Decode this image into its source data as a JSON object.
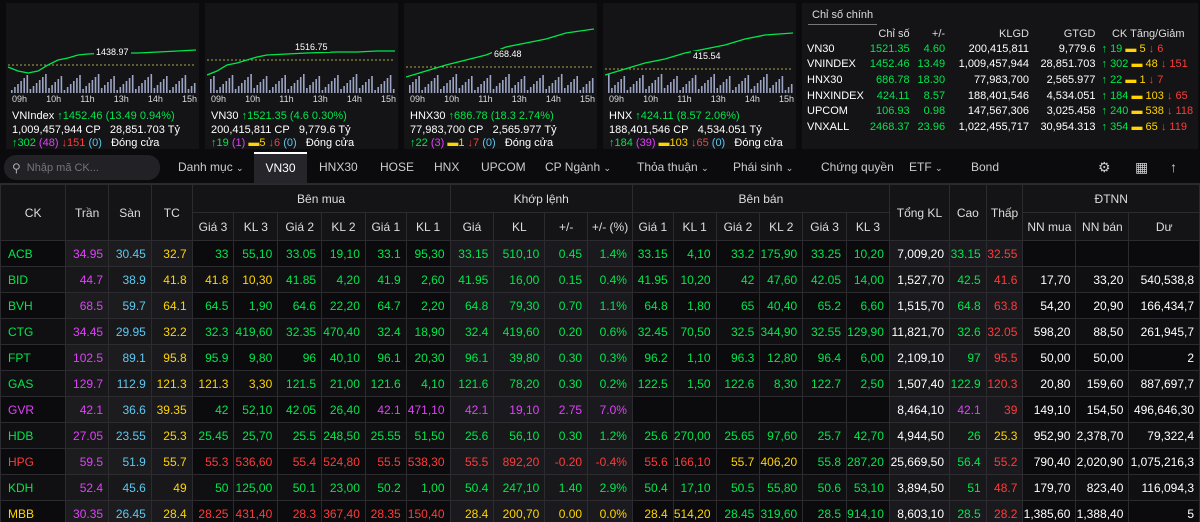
{
  "minicharts": [
    {
      "ref_label": "1438.97",
      "times": [
        "09h",
        "10h",
        "11h",
        "13h",
        "14h",
        "15h"
      ],
      "name": "VNIndex",
      "value": "1452.46",
      "change": "(13.49 0.94%)",
      "volume": "1,009,457,944 CP",
      "valuetext": "28,851.703 Tỷ",
      "up": "302",
      "ceil": "(48)",
      "down": "151",
      "ceil2": "(0)",
      "status": "Đóng cửa"
    },
    {
      "ref_label": "1516.75",
      "times": [
        "09h",
        "10h",
        "11h",
        "13h",
        "14h",
        "15h"
      ],
      "name": "VN30",
      "value": "1521.35",
      "change": "(4.6 0.30%)",
      "volume": "200,415,811 CP",
      "valuetext": "9,779.6 Tỷ",
      "up": "19",
      "ceil": "(1)",
      "same": "5",
      "down": "6",
      "ceil2": "(0)",
      "status": "Đóng cửa"
    },
    {
      "ref_label": "668.48",
      "times": [
        "09h",
        "10h",
        "11h",
        "13h",
        "14h",
        "15h"
      ],
      "name": "HNX30",
      "value": "686.78",
      "change": "(18.3 2.74%)",
      "volume": "77,983,700 CP",
      "valuetext": "2,565.977 Tỷ",
      "up": "22",
      "ceil": "(3)",
      "same": "1",
      "down": "7",
      "ceil2": "(0)",
      "status": "Đóng cửa"
    },
    {
      "ref_label": "415.54",
      "times": [
        "09h",
        "10h",
        "11h",
        "13h",
        "14h",
        "15h"
      ],
      "name": "HNX",
      "value": "424.11",
      "change": "(8.57 2.06%)",
      "volume": "188,401,546 CP",
      "valuetext": "4,534.051 Tỷ",
      "up": "184",
      "ceil": "(39)",
      "same": "103",
      "down": "65",
      "ceil2": "(0)",
      "status": "Đóng cửa"
    }
  ],
  "summary": {
    "tab": "Chỉ số chính",
    "headers": [
      "Chỉ số",
      "+/-",
      "KLGD",
      "GTGD",
      "CK Tăng/Giảm"
    ],
    "rows": [
      {
        "name": "VN30",
        "value": "1521.35",
        "chg": "4.60",
        "klgd": "200,415,811",
        "gtgd": "9,779.6",
        "up": "19",
        "same": "5",
        "down": "6"
      },
      {
        "name": "VNINDEX",
        "value": "1452.46",
        "chg": "13.49",
        "klgd": "1,009,457,944",
        "gtgd": "28,851.703",
        "up": "302",
        "same": "48",
        "down": "151"
      },
      {
        "name": "HNX30",
        "value": "686.78",
        "chg": "18.30",
        "klgd": "77,983,700",
        "gtgd": "2,565.977",
        "up": "22",
        "same": "1",
        "down": "7"
      },
      {
        "name": "HNXINDEX",
        "value": "424.11",
        "chg": "8.57",
        "klgd": "188,401,546",
        "gtgd": "4,534.051",
        "up": "184",
        "same": "103",
        "down": "65"
      },
      {
        "name": "UPCOM",
        "value": "106.93",
        "chg": "0.98",
        "klgd": "147,567,306",
        "gtgd": "3,025.458",
        "up": "240",
        "same": "538",
        "down": "118"
      },
      {
        "name": "VNXALL",
        "value": "2468.37",
        "chg": "23.96",
        "klgd": "1,022,455,717",
        "gtgd": "30,954.313",
        "up": "354",
        "same": "65",
        "down": "119"
      }
    ]
  },
  "toolbar": {
    "search_placeholder": "Nhập mã CK...",
    "tabs": [
      "Danh mục",
      "VN30",
      "HNX30",
      "HOSE",
      "HNX",
      "UPCOM",
      "CP Ngành",
      "Thỏa thuận",
      "Phái sinh",
      "Chứng quyền",
      "ETF",
      "Bond"
    ]
  },
  "table": {
    "groups": {
      "ben_mua": "Bên mua",
      "khop_lenh": "Khớp lệnh",
      "ben_ban": "Bên bán",
      "dtnn": "ĐTNN"
    },
    "headers": {
      "ck": "CK",
      "tran": "Trần",
      "san": "Sàn",
      "tc": "TC",
      "g3": "Giá 3",
      "kl3": "KL 3",
      "g2": "Giá 2",
      "kl2": "KL 2",
      "g1": "Giá 1",
      "kl1": "KL 1",
      "gia": "Giá",
      "kl": "KL",
      "chg": "+/-",
      "pct": "+/- (%)",
      "sg1": "Giá 1",
      "skl1": "KL 1",
      "sg2": "Giá 2",
      "skl2": "KL 2",
      "sg3": "Giá 3",
      "skl3": "KL 3",
      "tongkl": "Tổng KL",
      "cao": "Cao",
      "thap": "Thấp",
      "nnmua": "NN mua",
      "nnban": "NN bán",
      "du": "Dư"
    },
    "rows": [
      {
        "ck": "ACB",
        "c": "g",
        "tran": "34.95",
        "san": "30.45",
        "tc": "32.7",
        "b": [
          [
            "33",
            "g"
          ],
          [
            "55,10",
            "g"
          ],
          [
            "33.05",
            "g"
          ],
          [
            "19,10",
            "g"
          ],
          [
            "33.1",
            "g"
          ],
          [
            "95,30",
            "g"
          ]
        ],
        "m": [
          [
            "33.15",
            "g"
          ],
          [
            "510,10",
            "g"
          ],
          [
            "0.45",
            "g"
          ],
          [
            "1.4%",
            "g"
          ]
        ],
        "s": [
          [
            "33.15",
            "g"
          ],
          [
            "4,10",
            "g"
          ],
          [
            "33.2",
            "g"
          ],
          [
            "175,90",
            "g"
          ],
          [
            "33.25",
            "g"
          ],
          [
            "10,20",
            "g"
          ]
        ],
        "tongkl": "7,009,20",
        "cao": [
          "33.15",
          "g"
        ],
        "thap": [
          "32.55",
          "r"
        ],
        "nnmua": "",
        "nnban": "",
        "du": ""
      },
      {
        "ck": "BID",
        "c": "g",
        "tran": "44.7",
        "san": "38.9",
        "tc": "41.8",
        "b": [
          [
            "41.8",
            "y"
          ],
          [
            "10,30",
            "y"
          ],
          [
            "41.85",
            "g"
          ],
          [
            "4,20",
            "g"
          ],
          [
            "41.9",
            "g"
          ],
          [
            "2,60",
            "g"
          ]
        ],
        "m": [
          [
            "41.95",
            "g"
          ],
          [
            "16,00",
            "g"
          ],
          [
            "0.15",
            "g"
          ],
          [
            "0.4%",
            "g"
          ]
        ],
        "s": [
          [
            "41.95",
            "g"
          ],
          [
            "10,20",
            "g"
          ],
          [
            "42",
            "g"
          ],
          [
            "47,60",
            "g"
          ],
          [
            "42.05",
            "g"
          ],
          [
            "14,00",
            "g"
          ]
        ],
        "tongkl": "1,527,70",
        "cao": [
          "42.5",
          "g"
        ],
        "thap": [
          "41.6",
          "r"
        ],
        "nnmua": "17,70",
        "nnban": "33,20",
        "du": "540,538,8"
      },
      {
        "ck": "BVH",
        "c": "g",
        "tran": "68.5",
        "san": "59.7",
        "tc": "64.1",
        "b": [
          [
            "64.5",
            "g"
          ],
          [
            "1,90",
            "g"
          ],
          [
            "64.6",
            "g"
          ],
          [
            "22,20",
            "g"
          ],
          [
            "64.7",
            "g"
          ],
          [
            "2,20",
            "g"
          ]
        ],
        "m": [
          [
            "64.8",
            "g"
          ],
          [
            "79,30",
            "g"
          ],
          [
            "0.70",
            "g"
          ],
          [
            "1.1%",
            "g"
          ]
        ],
        "s": [
          [
            "64.8",
            "g"
          ],
          [
            "1,80",
            "g"
          ],
          [
            "65",
            "g"
          ],
          [
            "40,40",
            "g"
          ],
          [
            "65.2",
            "g"
          ],
          [
            "6,60",
            "g"
          ]
        ],
        "tongkl": "1,515,70",
        "cao": [
          "64.8",
          "g"
        ],
        "thap": [
          "63.8",
          "r"
        ],
        "nnmua": "54,20",
        "nnban": "20,90",
        "du": "166,434,7"
      },
      {
        "ck": "CTG",
        "c": "g",
        "tran": "34.45",
        "san": "29.95",
        "tc": "32.2",
        "b": [
          [
            "32.3",
            "g"
          ],
          [
            "419,60",
            "g"
          ],
          [
            "32.35",
            "g"
          ],
          [
            "470,40",
            "g"
          ],
          [
            "32.4",
            "g"
          ],
          [
            "18,90",
            "g"
          ]
        ],
        "m": [
          [
            "32.4",
            "g"
          ],
          [
            "419,60",
            "g"
          ],
          [
            "0.20",
            "g"
          ],
          [
            "0.6%",
            "g"
          ]
        ],
        "s": [
          [
            "32.45",
            "g"
          ],
          [
            "70,50",
            "g"
          ],
          [
            "32.5",
            "g"
          ],
          [
            "344,90",
            "g"
          ],
          [
            "32.55",
            "g"
          ],
          [
            "129,90",
            "g"
          ]
        ],
        "tongkl": "11,821,70",
        "cao": [
          "32.6",
          "g"
        ],
        "thap": [
          "32.05",
          "r"
        ],
        "nnmua": "598,20",
        "nnban": "88,50",
        "du": "261,945,7"
      },
      {
        "ck": "FPT",
        "c": "g",
        "tran": "102.5",
        "san": "89.1",
        "tc": "95.8",
        "b": [
          [
            "95.9",
            "g"
          ],
          [
            "9,80",
            "g"
          ],
          [
            "96",
            "g"
          ],
          [
            "40,10",
            "g"
          ],
          [
            "96.1",
            "g"
          ],
          [
            "20,30",
            "g"
          ]
        ],
        "m": [
          [
            "96.1",
            "g"
          ],
          [
            "39,80",
            "g"
          ],
          [
            "0.30",
            "g"
          ],
          [
            "0.3%",
            "g"
          ]
        ],
        "s": [
          [
            "96.2",
            "g"
          ],
          [
            "1,10",
            "g"
          ],
          [
            "96.3",
            "g"
          ],
          [
            "12,80",
            "g"
          ],
          [
            "96.4",
            "g"
          ],
          [
            "6,00",
            "g"
          ]
        ],
        "tongkl": "2,109,10",
        "cao": [
          "97",
          "g"
        ],
        "thap": [
          "95.5",
          "r"
        ],
        "nnmua": "50,00",
        "nnban": "50,00",
        "du": "2"
      },
      {
        "ck": "GAS",
        "c": "g",
        "tran": "129.7",
        "san": "112.9",
        "tc": "121.3",
        "b": [
          [
            "121.3",
            "y"
          ],
          [
            "3,30",
            "y"
          ],
          [
            "121.5",
            "g"
          ],
          [
            "21,00",
            "g"
          ],
          [
            "121.6",
            "g"
          ],
          [
            "4,10",
            "g"
          ]
        ],
        "m": [
          [
            "121.6",
            "g"
          ],
          [
            "78,20",
            "g"
          ],
          [
            "0.30",
            "g"
          ],
          [
            "0.2%",
            "g"
          ]
        ],
        "s": [
          [
            "122.5",
            "g"
          ],
          [
            "1,50",
            "g"
          ],
          [
            "122.6",
            "g"
          ],
          [
            "8,30",
            "g"
          ],
          [
            "122.7",
            "g"
          ],
          [
            "2,50",
            "g"
          ]
        ],
        "tongkl": "1,507,40",
        "cao": [
          "122.9",
          "g"
        ],
        "thap": [
          "120.3",
          "r"
        ],
        "nnmua": "20,80",
        "nnban": "159,60",
        "du": "887,697,7"
      },
      {
        "ck": "GVR",
        "c": "p",
        "tran": "42.1",
        "san": "36.6",
        "tc": "39.35",
        "b": [
          [
            "42",
            "g"
          ],
          [
            "52,10",
            "g"
          ],
          [
            "42.05",
            "g"
          ],
          [
            "26,40",
            "g"
          ],
          [
            "42.1",
            "p"
          ],
          [
            "471,10",
            "p"
          ]
        ],
        "m": [
          [
            "42.1",
            "p"
          ],
          [
            "19,10",
            "p"
          ],
          [
            "2.75",
            "p"
          ],
          [
            "7.0%",
            "p"
          ]
        ],
        "s": [
          [
            "",
            "g"
          ],
          [
            "",
            "g"
          ],
          [
            "",
            "g"
          ],
          [
            "",
            "g"
          ],
          [
            "",
            "g"
          ],
          [
            "",
            "g"
          ]
        ],
        "tongkl": "8,464,10",
        "cao": [
          "42.1",
          "p"
        ],
        "thap": [
          "39",
          "r"
        ],
        "nnmua": "149,10",
        "nnban": "154,50",
        "du": "496,646,30"
      },
      {
        "ck": "HDB",
        "c": "g",
        "tran": "27.05",
        "san": "23.55",
        "tc": "25.3",
        "b": [
          [
            "25.45",
            "g"
          ],
          [
            "25,70",
            "g"
          ],
          [
            "25.5",
            "g"
          ],
          [
            "248,50",
            "g"
          ],
          [
            "25.55",
            "g"
          ],
          [
            "51,50",
            "g"
          ]
        ],
        "m": [
          [
            "25.6",
            "g"
          ],
          [
            "56,10",
            "g"
          ],
          [
            "0.30",
            "g"
          ],
          [
            "1.2%",
            "g"
          ]
        ],
        "s": [
          [
            "25.6",
            "g"
          ],
          [
            "270,00",
            "g"
          ],
          [
            "25.65",
            "g"
          ],
          [
            "97,60",
            "g"
          ],
          [
            "25.7",
            "g"
          ],
          [
            "42,70",
            "g"
          ]
        ],
        "tongkl": "4,944,50",
        "cao": [
          "26",
          "g"
        ],
        "thap": [
          "25.3",
          "y"
        ],
        "nnmua": "952,90",
        "nnban": "2,378,70",
        "du": "79,322,4"
      },
      {
        "ck": "HPG",
        "c": "r",
        "tran": "59.5",
        "san": "51.9",
        "tc": "55.7",
        "b": [
          [
            "55.3",
            "r"
          ],
          [
            "536,60",
            "r"
          ],
          [
            "55.4",
            "r"
          ],
          [
            "524,80",
            "r"
          ],
          [
            "55.5",
            "r"
          ],
          [
            "538,30",
            "r"
          ]
        ],
        "m": [
          [
            "55.5",
            "r"
          ],
          [
            "892,20",
            "r"
          ],
          [
            "-0.20",
            "r"
          ],
          [
            "-0.4%",
            "r"
          ]
        ],
        "s": [
          [
            "55.6",
            "r"
          ],
          [
            "166,10",
            "r"
          ],
          [
            "55.7",
            "y"
          ],
          [
            "406,20",
            "y"
          ],
          [
            "55.8",
            "g"
          ],
          [
            "287,20",
            "g"
          ]
        ],
        "tongkl": "25,669,50",
        "cao": [
          "56.4",
          "g"
        ],
        "thap": [
          "55.2",
          "r"
        ],
        "nnmua": "790,40",
        "nnban": "2,020,90",
        "du": "1,075,216,3"
      },
      {
        "ck": "KDH",
        "c": "g",
        "tran": "52.4",
        "san": "45.6",
        "tc": "49",
        "b": [
          [
            "50",
            "g"
          ],
          [
            "125,00",
            "g"
          ],
          [
            "50.1",
            "g"
          ],
          [
            "23,00",
            "g"
          ],
          [
            "50.2",
            "g"
          ],
          [
            "1,00",
            "g"
          ]
        ],
        "m": [
          [
            "50.4",
            "g"
          ],
          [
            "247,10",
            "g"
          ],
          [
            "1.40",
            "g"
          ],
          [
            "2.9%",
            "g"
          ]
        ],
        "s": [
          [
            "50.4",
            "g"
          ],
          [
            "17,10",
            "g"
          ],
          [
            "50.5",
            "g"
          ],
          [
            "55,80",
            "g"
          ],
          [
            "50.6",
            "g"
          ],
          [
            "53,10",
            "g"
          ]
        ],
        "tongkl": "3,894,50",
        "cao": [
          "51",
          "g"
        ],
        "thap": [
          "48.7",
          "r"
        ],
        "nnmua": "179,70",
        "nnban": "823,40",
        "du": "116,094,3"
      },
      {
        "ck": "MBB",
        "c": "y",
        "tran": "30.35",
        "san": "26.45",
        "tc": "28.4",
        "b": [
          [
            "28.25",
            "r"
          ],
          [
            "431,40",
            "r"
          ],
          [
            "28.3",
            "r"
          ],
          [
            "367,40",
            "r"
          ],
          [
            "28.35",
            "r"
          ],
          [
            "150,40",
            "r"
          ]
        ],
        "m": [
          [
            "28.4",
            "y"
          ],
          [
            "200,70",
            "y"
          ],
          [
            "0.00",
            "y"
          ],
          [
            "0.0%",
            "y"
          ]
        ],
        "s": [
          [
            "28.4",
            "y"
          ],
          [
            "514,20",
            "y"
          ],
          [
            "28.45",
            "g"
          ],
          [
            "319,60",
            "g"
          ],
          [
            "28.5",
            "g"
          ],
          [
            "914,10",
            "g"
          ]
        ],
        "tongkl": "8,603,10",
        "cao": [
          "28.5",
          "g"
        ],
        "thap": [
          "28.2",
          "r"
        ],
        "nnmua": "1,385,60",
        "nnban": "1,388,40",
        "du": "5"
      }
    ]
  },
  "colors": {
    "up": "#00e64d",
    "down": "#ff3b3b",
    "ref": "#ffd400",
    "ceil": "#e040fb",
    "floor": "#5ec8f2"
  }
}
